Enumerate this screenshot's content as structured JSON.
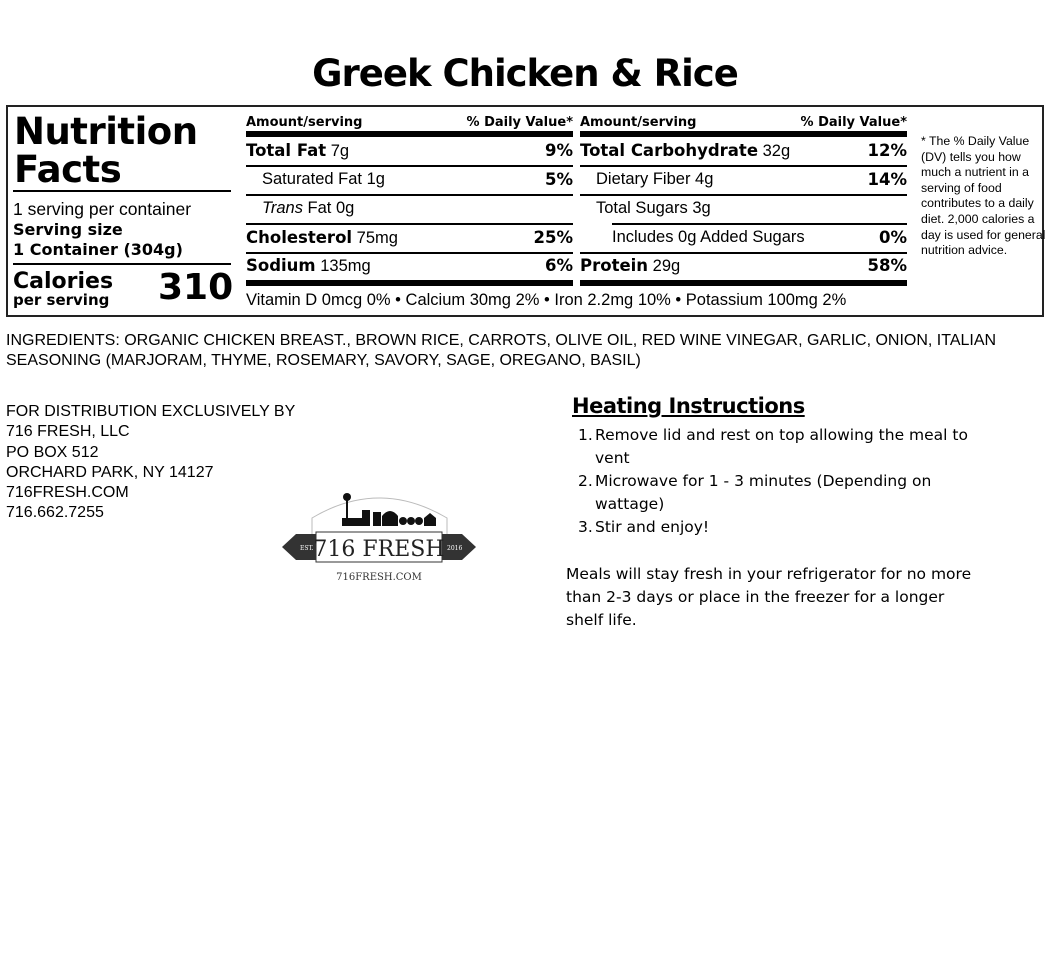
{
  "title": "Greek Chicken & Rice",
  "label": {
    "heading": "Nutrition Facts",
    "servings": "1 serving per container",
    "serving_size_label": "Serving size",
    "serving_size": "1 Container (304g)",
    "calories_label": "Calories",
    "per_serving": "per serving",
    "calories": "310",
    "amount_header": "Amount/serving",
    "dv_header": "% Daily Value*",
    "left": [
      {
        "name": "Total Fat",
        "amount": "7g",
        "dv": "9%",
        "bold": true
      },
      {
        "name": "Saturated Fat",
        "amount": "1g",
        "dv": "5%",
        "indent": 1
      },
      {
        "name": "Trans",
        "amount": "Fat 0g",
        "dv": "",
        "indent": 1,
        "italic": true
      },
      {
        "name": "Cholesterol",
        "amount": "75mg",
        "dv": "25%",
        "bold": true
      },
      {
        "name": "Sodium",
        "amount": "135mg",
        "dv": "6%",
        "bold": true
      }
    ],
    "right": [
      {
        "name": "Total Carbohydrate",
        "amount": "32g",
        "dv": "12%",
        "bold": true
      },
      {
        "name": "Dietary Fiber",
        "amount": "4g",
        "dv": "14%",
        "indent": 1
      },
      {
        "name": "Total Sugars",
        "amount": "3g",
        "dv": "",
        "indent": 1
      },
      {
        "name": "Includes 0g Added Sugars",
        "amount": "",
        "dv": "0%",
        "indent": 2
      },
      {
        "name": "Protein",
        "amount": "29g",
        "dv": "58%",
        "bold": true
      }
    ],
    "vitamins": "Vitamin D 0mcg 0% • Calcium 30mg 2% • Iron 2.2mg 10% • Potassium 100mg 2%",
    "footnote": "* The % Daily Value (DV) tells you how much a nutrient in a serving of food contributes to a daily diet. 2,000 calories a day is used for general nutrition advice."
  },
  "ingredients": "INGREDIENTS: ORGANIC CHICKEN BREAST., BROWN RICE, CARROTS, OLIVE OIL, RED WINE VINEGAR, GARLIC, ONION, ITALIAN SEASONING (MARJORAM, THYME, ROSEMARY, SAVORY, SAGE, OREGANO, BASIL)",
  "distributor": [
    "FOR DISTRIBUTION EXCLUSIVELY BY",
    "716 FRESH, LLC",
    "PO BOX 512",
    "ORCHARD PARK, NY 14127",
    "716FRESH.COM",
    "716.662.7255"
  ],
  "logo": {
    "name": "716 FRESH",
    "est": "EST.",
    "year": "2016",
    "url": "716FRESH.COM"
  },
  "heating": {
    "title": "Heating Instructions",
    "steps": [
      "Remove lid and rest on top allowing the meal to vent",
      " Microwave for 1 - 3 minutes (Depending on wattage)",
      "Stir and enjoy!"
    ],
    "storage": "Meals will stay fresh in your refrigerator for no more than 2-3 days or place in the freezer for a longer shelf life."
  }
}
